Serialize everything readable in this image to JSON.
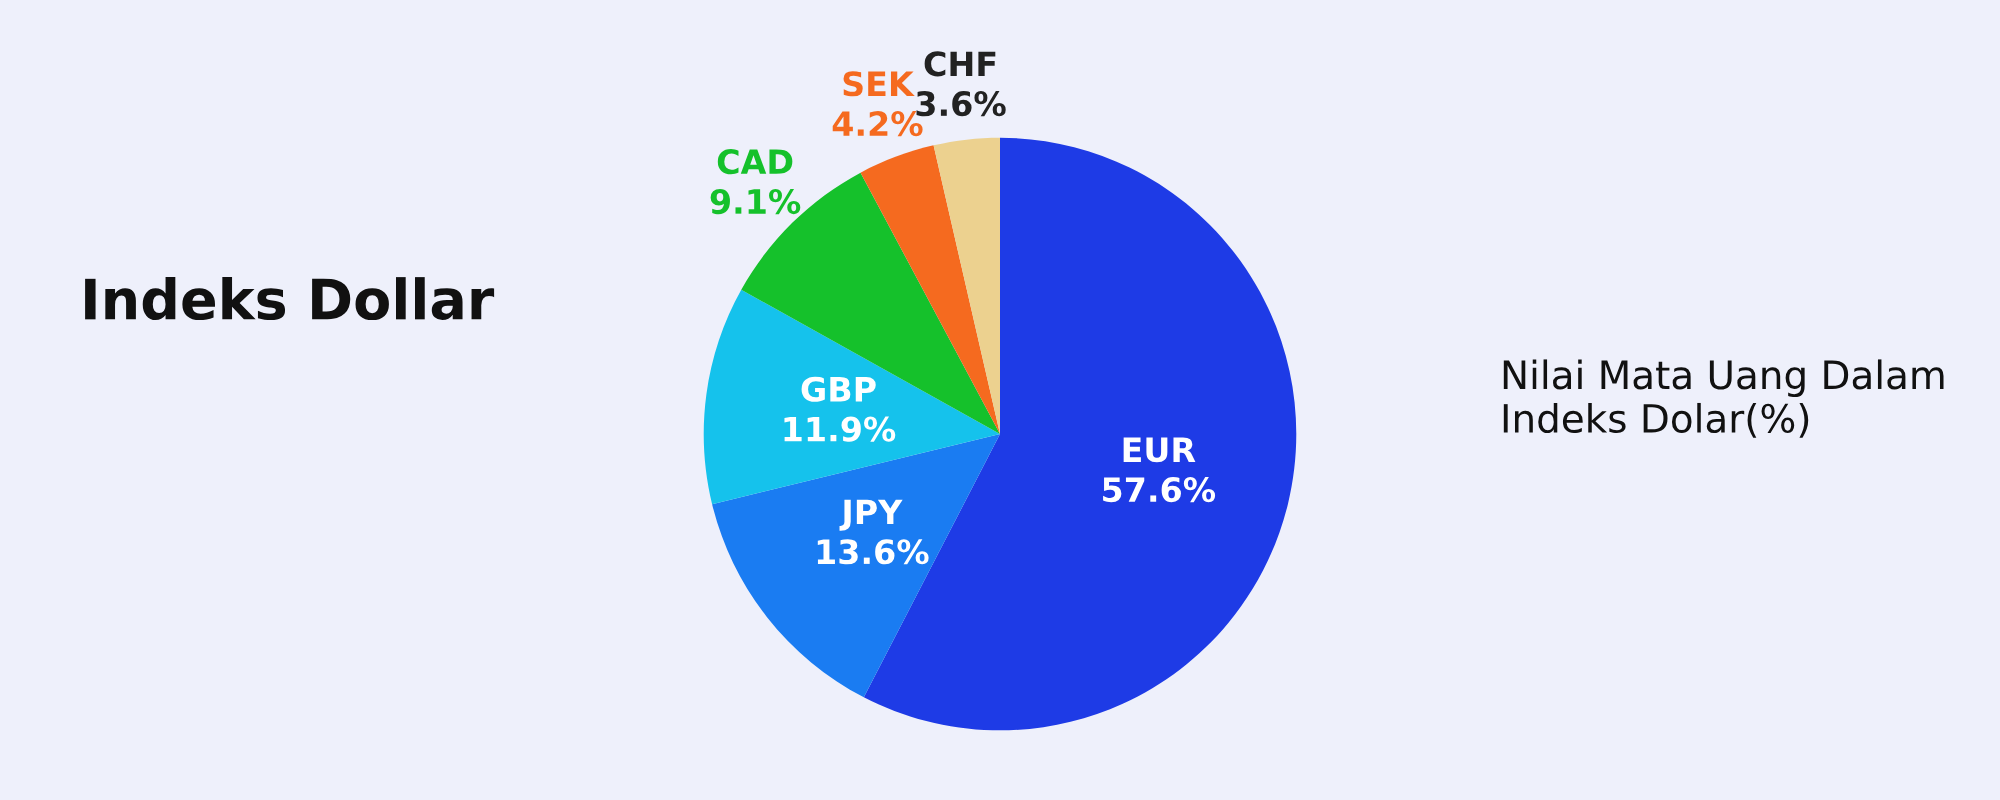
{
  "chart_data": {
    "type": "pie",
    "title": "Indeks Dollar",
    "subtitle": "Nilai Mata Uang Dalam Indeks Dolar(%)",
    "categories": [
      "EUR",
      "JPY",
      "GBP",
      "CAD",
      "SEK",
      "CHF"
    ],
    "values": [
      57.6,
      13.6,
      11.9,
      9.1,
      4.2,
      3.6
    ],
    "colors": [
      "#1e3be6",
      "#1a7cf2",
      "#15c2ec",
      "#15c12b",
      "#f56a1f",
      "#ecd18f"
    ],
    "value_labels": [
      "57.6%",
      "13.6%",
      "11.9%",
      "9.1%",
      "4.2%",
      "3.6%"
    ],
    "legend": false
  }
}
